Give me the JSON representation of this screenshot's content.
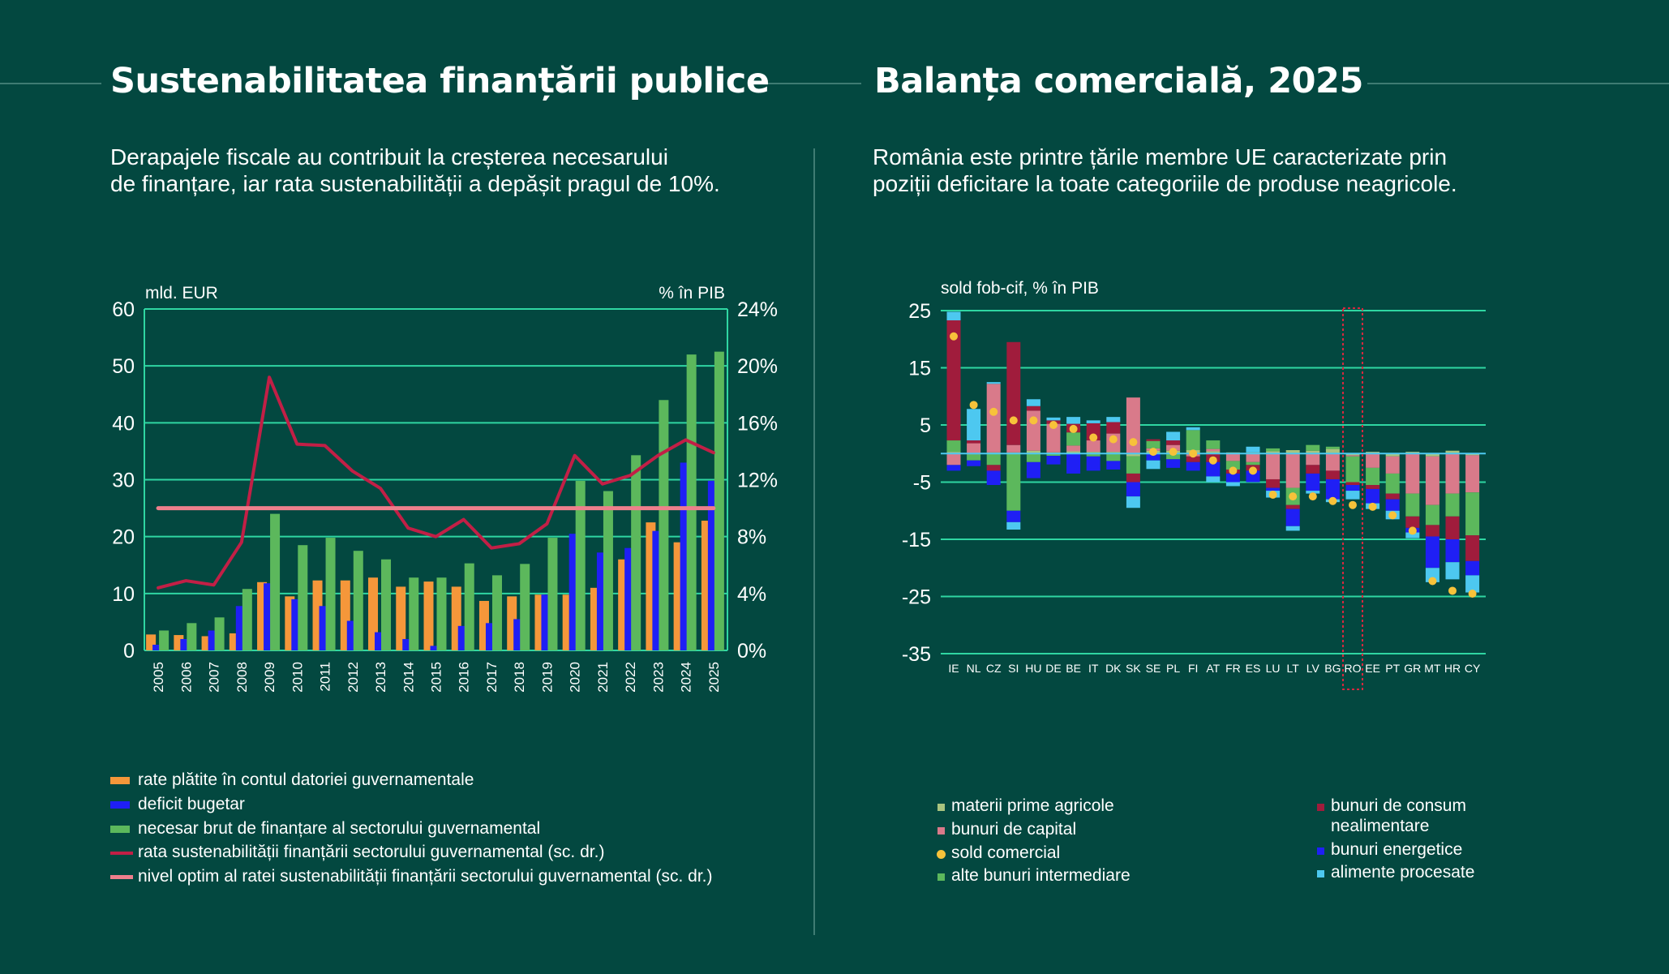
{
  "left": {
    "title": "Sustenabilitatea finanțării publice",
    "subtitle_line1": "Derapajele fiscale au contribuit la creșterea necesarului",
    "subtitle_line2": "de finanțare, iar rata sustenabilității a depășit pragul de 10%.",
    "unit_left": "mld. EUR",
    "unit_right": "% în PIB",
    "legend": [
      {
        "label": "rate plătite în contul datoriei guvernamentale",
        "color": "#f5973a",
        "kind": "bar"
      },
      {
        "label": "deficit bugetar",
        "color": "#1f1ff5",
        "kind": "bar"
      },
      {
        "label": "necesar brut de finanțare al sectorului guvernamental",
        "color": "#5cb85c",
        "kind": "bar"
      },
      {
        "label": "rata sustenabilității finanțării sectorului guvernamental (sc. dr.)",
        "color": "#c21f46",
        "kind": "line"
      },
      {
        "label": "nivel optim al ratei sustenabilității finanțării sectorului guvernamental (sc. dr.)",
        "color": "#ee7f8c",
        "kind": "line"
      }
    ]
  },
  "right": {
    "title": "Balanța comercială, 2025",
    "subtitle_line1": "România este printre țările membre UE caracterizate prin",
    "subtitle_line2": "poziții deficitare la toate categoriile de produse neagricole.",
    "unit_label": "sold fob-cif, % în PIB",
    "legend_left": [
      {
        "label": "materii prime agricole",
        "color": "#a9c47f",
        "kind": "square"
      },
      {
        "label": "bunuri de capital",
        "color": "#d97a8a",
        "kind": "square"
      },
      {
        "label": "sold comercial",
        "color": "#f7c23a",
        "kind": "dot"
      },
      {
        "label": "alte bunuri intermediare",
        "color": "#5cb85c",
        "kind": "square"
      }
    ],
    "legend_right": [
      {
        "label": "bunuri de consum",
        "label2": "nealimentare",
        "color": "#a01c3c",
        "kind": "square"
      },
      {
        "label": "bunuri energetice",
        "color": "#1f1ff5",
        "kind": "square"
      },
      {
        "label": "alimente procesate",
        "color": "#4dc8f0",
        "kind": "square"
      }
    ]
  },
  "chart_data": [
    {
      "type": "bar",
      "title": "Sustenabilitatea finanțării publice",
      "ylabel": "mld. EUR",
      "ylabel_right": "% în PIB",
      "ylim": [
        0,
        60
      ],
      "yticks": [
        "0",
        "10",
        "20",
        "30",
        "40",
        "50",
        "60"
      ],
      "ylim_right": [
        0,
        24
      ],
      "yticks_right": [
        "0%",
        "4%",
        "8%",
        "12%",
        "16%",
        "20%",
        "24%"
      ],
      "grid": true,
      "categories": [
        "2005",
        "2006",
        "2007",
        "2008",
        "2009",
        "2010",
        "2011",
        "2012",
        "2013",
        "2014",
        "2015",
        "2016",
        "2017",
        "2018",
        "2019",
        "2020",
        "2021",
        "2022",
        "2023",
        "2024",
        "2025"
      ],
      "series": [
        {
          "name": "rate plătite în contul datoriei guvernamentale",
          "type": "bar",
          "color": "#f5973a",
          "values": [
            2.8,
            2.7,
            2.5,
            3.0,
            12.0,
            9.5,
            12.3,
            12.3,
            12.8,
            11.2,
            12.1,
            11.2,
            8.7,
            9.5,
            9.8,
            9.8,
            11.0,
            16.0,
            22.5,
            19.0,
            22.8
          ]
        },
        {
          "name": "deficit bugetar",
          "type": "bar",
          "color": "#1f1ff5",
          "values": [
            1.0,
            2.0,
            3.5,
            7.8,
            11.8,
            9.0,
            7.8,
            5.2,
            3.2,
            2.0,
            0.8,
            4.3,
            4.8,
            5.5,
            9.8,
            20.5,
            17.2,
            18.0,
            21.0,
            33.0,
            29.8
          ]
        },
        {
          "name": "necesar brut de finanțare al sectorului guvernamental",
          "type": "bar",
          "color": "#5cb85c",
          "values": [
            3.5,
            4.8,
            5.8,
            10.8,
            24.0,
            18.5,
            19.8,
            17.5,
            16.0,
            12.8,
            12.8,
            15.3,
            13.2,
            15.2,
            19.8,
            29.8,
            28.0,
            34.3,
            44.0,
            52.0,
            52.5
          ]
        },
        {
          "name": "rata sustenabilității finanțării sectorului guvernamental (sc. dr.)",
          "type": "line",
          "axis": "right",
          "color": "#c21f46",
          "values": [
            4.4,
            4.9,
            4.6,
            7.6,
            19.2,
            14.5,
            14.4,
            12.6,
            11.4,
            8.6,
            8.0,
            9.2,
            7.2,
            7.5,
            8.9,
            13.7,
            11.7,
            12.3,
            13.7,
            14.8,
            13.9
          ]
        },
        {
          "name": "nivel optim al ratei sustenabilității finanțării sectorului guvernamental (sc. dr.)",
          "type": "line",
          "axis": "right",
          "color": "#ee7f8c",
          "values": [
            10,
            10,
            10,
            10,
            10,
            10,
            10,
            10,
            10,
            10,
            10,
            10,
            10,
            10,
            10,
            10,
            10,
            10,
            10,
            10,
            10
          ]
        }
      ]
    },
    {
      "type": "bar",
      "stacked": true,
      "title": "Balanța comercială, 2025",
      "ylabel": "sold fob-cif, % în PIB",
      "ylim": [
        -35,
        25
      ],
      "yticks": [
        "-35",
        "-25",
        "-15",
        "-5",
        "5",
        "15",
        "25"
      ],
      "grid": true,
      "highlight": "RO",
      "categories": [
        "IE",
        "NL",
        "CZ",
        "SI",
        "HU",
        "DE",
        "BE",
        "IT",
        "DK",
        "SK",
        "SE",
        "PL",
        "FI",
        "AT",
        "FR",
        "ES",
        "LU",
        "LT",
        "LV",
        "BG",
        "RO",
        "EE",
        "PT",
        "GR",
        "MT",
        "HR",
        "CY"
      ],
      "series": [
        {
          "name": "materii prime agricole",
          "color": "#a9c47f",
          "values": [
            0.3,
            -0.2,
            0.2,
            0.2,
            0.5,
            0.2,
            0.4,
            0.3,
            0.3,
            -0.5,
            0.5,
            0.5,
            0.6,
            0.4,
            0.2,
            0.2,
            0.4,
            0.6,
            0.5,
            0.8,
            -0.3,
            0.3,
            -0.5,
            0.3,
            -0.5,
            0.5,
            -0.3
          ]
        },
        {
          "name": "bunuri de capital",
          "color": "#d97a8a",
          "values": [
            -2.0,
            1.8,
            12.0,
            1.3,
            7.0,
            5.0,
            1.0,
            2.0,
            3.2,
            9.8,
            0.4,
            1.0,
            -0.5,
            0.4,
            -1.3,
            -1.5,
            -4.5,
            -6.0,
            -2.0,
            -3.0,
            -0.2,
            -2.5,
            -3.0,
            -7.0,
            -8.5,
            -7.0,
            -6.5
          ]
        },
        {
          "name": "sold comercial",
          "type": "point",
          "color": "#f7c23a",
          "values": [
            20.5,
            8.5,
            7.3,
            5.8,
            5.8,
            5.0,
            4.3,
            2.8,
            2.5,
            2.0,
            0.3,
            0.3,
            0.0,
            -1.2,
            -3.0,
            -3.0,
            -7.2,
            -7.5,
            -7.5,
            -8.3,
            -9.0,
            -9.3,
            -10.8,
            -13.5,
            -22.3,
            -24.0,
            -24.5
          ]
        },
        {
          "name": "alte bunuri intermediare",
          "color": "#5cb85c",
          "values": [
            2.0,
            -1.0,
            -2.0,
            -10.0,
            -1.5,
            -0.4,
            2.3,
            -0.5,
            -1.3,
            -3.0,
            1.3,
            -1.0,
            3.5,
            1.5,
            -1.5,
            -0.5,
            0.5,
            -3.0,
            1.0,
            0.4,
            -4.5,
            -3.0,
            -3.5,
            -4.0,
            -3.5,
            -4.0,
            -7.5
          ]
        },
        {
          "name": "bunuri de consum nealimentare",
          "color": "#a01c3c",
          "values": [
            21.0,
            0.5,
            -1.0,
            18.0,
            0.8,
            0.6,
            1.5,
            3.0,
            2.0,
            -1.5,
            0.3,
            0.8,
            -1.0,
            -1.5,
            -0.7,
            -1.0,
            -1.5,
            -0.7,
            -1.5,
            -1.5,
            -0.5,
            -0.7,
            -1.0,
            -2.0,
            -2.0,
            -4.0,
            -4.5
          ]
        },
        {
          "name": "bunuri energetice",
          "color": "#1f1ff5",
          "values": [
            -1.0,
            -1.0,
            -2.5,
            -2.0,
            -2.8,
            -1.5,
            -3.5,
            -2.5,
            -1.5,
            -2.5,
            -1.2,
            -1.5,
            -1.5,
            -2.5,
            -1.5,
            -2.0,
            -0.5,
            -3.0,
            -3.0,
            -3.5,
            -1.0,
            -2.5,
            -2.0,
            -0.8,
            -5.5,
            -4.0,
            -2.5
          ]
        },
        {
          "name": "alimente procesate",
          "color": "#4dc8f0",
          "values": [
            1.5,
            5.5,
            0.3,
            -1.3,
            1.2,
            0.5,
            1.2,
            0.5,
            0.9,
            -2.0,
            -1.5,
            1.5,
            0.5,
            -1.0,
            -0.7,
            1.0,
            -1.2,
            -0.8,
            -0.5,
            -0.5,
            -1.5,
            -1.0,
            -1.5,
            -1.0,
            -2.5,
            -3.0,
            -3.0
          ]
        }
      ]
    }
  ]
}
